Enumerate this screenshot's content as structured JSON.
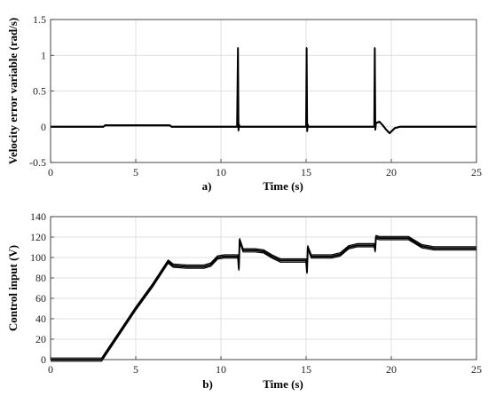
{
  "chart_data": [
    {
      "type": "line",
      "panel_label": "a)",
      "xlabel": "Time (s)",
      "ylabel": "Velocity error variable (rad/s)",
      "xlim": [
        0,
        25
      ],
      "ylim": [
        -0.5,
        1.5
      ],
      "xticks": [
        "0",
        "5",
        "10",
        "15",
        "20",
        "25"
      ],
      "yticks": [
        "-0.5",
        "0",
        "0.5",
        "1",
        "1.5"
      ],
      "grid": true,
      "series": [
        {
          "x": [
            0,
            3.1,
            3.2,
            7.0,
            7.1,
            10.95,
            11.0,
            11.03,
            11.06,
            11.1,
            15.0,
            15.03,
            15.06,
            15.1,
            15.13,
            19.0,
            19.03,
            19.06,
            19.1,
            19.3,
            19.5,
            19.7,
            19.9,
            20.2,
            20.5,
            25
          ],
          "y": [
            0,
            0,
            0.02,
            0.02,
            0.0,
            0.0,
            1.1,
            -0.05,
            0.03,
            0.0,
            0.0,
            1.1,
            -0.06,
            0.03,
            0.0,
            0.0,
            1.1,
            -0.04,
            0.05,
            0.07,
            0.02,
            -0.04,
            -0.09,
            -0.02,
            0.0,
            0.0
          ]
        }
      ]
    },
    {
      "type": "line",
      "panel_label": "b)",
      "xlabel": "Time (s)",
      "ylabel": "Control input (V)",
      "xlim": [
        0,
        25
      ],
      "ylim": [
        0,
        140
      ],
      "xticks": [
        "0",
        "5",
        "10",
        "15",
        "20",
        "25"
      ],
      "yticks": [
        "0",
        "20",
        "40",
        "60",
        "80",
        "100",
        "120",
        "140"
      ],
      "grid": true,
      "series": [
        {
          "x": [
            0,
            3.0,
            3.2,
            4.0,
            5.0,
            6.0,
            6.9,
            7.2,
            8.0,
            9.0,
            9.4,
            9.8,
            10.2,
            11.0,
            11.05,
            11.1,
            11.3,
            12.0,
            12.5,
            13.0,
            13.5,
            14.0,
            15.0,
            15.05,
            15.1,
            15.3,
            16.0,
            16.5,
            17.0,
            17.5,
            18.0,
            19.0,
            19.05,
            19.1,
            19.3,
            20.0,
            21.0,
            21.3,
            21.8,
            22.5,
            25
          ],
          "y": [
            0,
            0,
            5,
            25,
            50,
            73,
            96,
            92,
            91,
            91,
            93,
            100,
            101,
            101,
            89,
            117,
            107,
            107,
            106,
            101,
            97,
            97,
            97,
            86,
            110,
            101,
            101,
            101,
            103,
            110,
            112,
            112,
            107,
            120,
            119,
            119,
            119,
            116,
            111,
            109,
            109
          ]
        }
      ]
    }
  ]
}
